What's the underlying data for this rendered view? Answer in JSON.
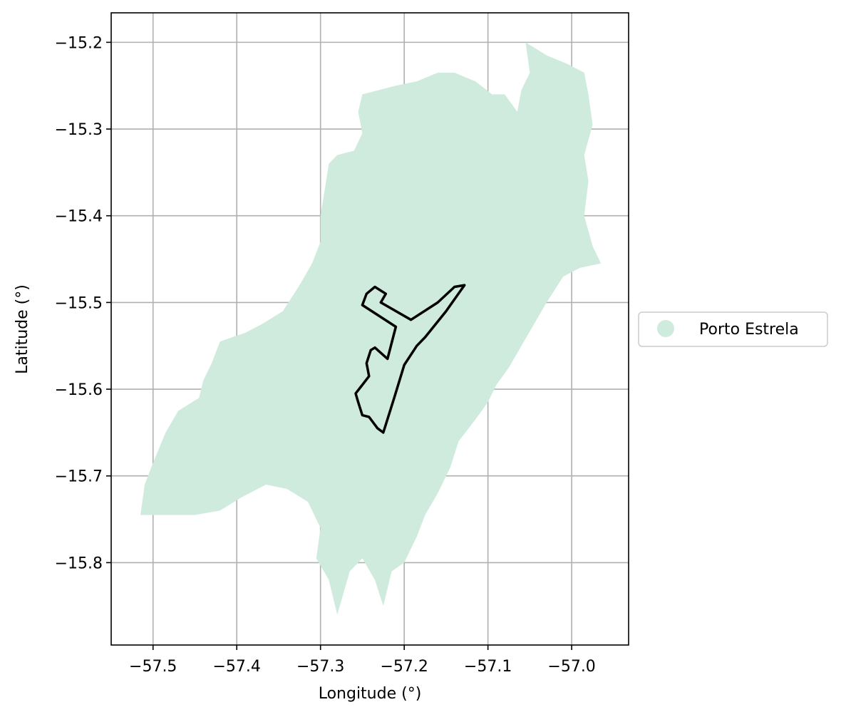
{
  "chart_data": {
    "type": "map",
    "xlabel": "Longitude (°)",
    "ylabel": "Latitude (°)",
    "xlim": [
      -57.55,
      -56.932
    ],
    "ylim": [
      -15.895,
      -15.166
    ],
    "x_ticks": [
      -57.5,
      -57.4,
      -57.3,
      -57.2,
      -57.1,
      -57.0
    ],
    "x_tick_labels": [
      "−57.5",
      "−57.4",
      "−57.3",
      "−57.2",
      "−57.1",
      "−57.0"
    ],
    "y_ticks": [
      -15.2,
      -15.3,
      -15.4,
      -15.5,
      -15.6,
      -15.7,
      -15.8
    ],
    "y_tick_labels": [
      "−15.2",
      "−15.3",
      "−15.4",
      "−15.5",
      "−15.6",
      "−15.7",
      "−15.8"
    ],
    "grid": true,
    "legend": {
      "placement": "right",
      "entries": [
        {
          "label": "Porto Estrela",
          "color": "#cfebdd"
        }
      ]
    },
    "region_fill_color": "#cfebdd",
    "outline_color": "#000000",
    "region": [
      [
        -57.055,
        -15.2
      ],
      [
        -57.03,
        -15.215
      ],
      [
        -57.005,
        -15.225
      ],
      [
        -56.985,
        -15.235
      ],
      [
        -56.98,
        -15.26
      ],
      [
        -56.975,
        -15.295
      ],
      [
        -56.985,
        -15.33
      ],
      [
        -56.98,
        -15.36
      ],
      [
        -56.985,
        -15.4
      ],
      [
        -56.975,
        -15.435
      ],
      [
        -56.965,
        -15.455
      ],
      [
        -56.99,
        -15.46
      ],
      [
        -57.01,
        -15.47
      ],
      [
        -57.03,
        -15.5
      ],
      [
        -57.045,
        -15.525
      ],
      [
        -57.06,
        -15.55
      ],
      [
        -57.075,
        -15.575
      ],
      [
        -57.09,
        -15.595
      ],
      [
        -57.1,
        -15.615
      ],
      [
        -57.115,
        -15.635
      ],
      [
        -57.135,
        -15.66
      ],
      [
        -57.145,
        -15.69
      ],
      [
        -57.16,
        -15.72
      ],
      [
        -57.175,
        -15.745
      ],
      [
        -57.185,
        -15.77
      ],
      [
        -57.2,
        -15.8
      ],
      [
        -57.215,
        -15.81
      ],
      [
        -57.225,
        -15.85
      ],
      [
        -57.235,
        -15.82
      ],
      [
        -57.25,
        -15.795
      ],
      [
        -57.265,
        -15.81
      ],
      [
        -57.28,
        -15.86
      ],
      [
        -57.29,
        -15.82
      ],
      [
        -57.305,
        -15.795
      ],
      [
        -57.3,
        -15.76
      ],
      [
        -57.315,
        -15.73
      ],
      [
        -57.34,
        -15.715
      ],
      [
        -57.365,
        -15.71
      ],
      [
        -57.395,
        -15.725
      ],
      [
        -57.42,
        -15.74
      ],
      [
        -57.45,
        -15.745
      ],
      [
        -57.49,
        -15.745
      ],
      [
        -57.515,
        -15.745
      ],
      [
        -57.51,
        -15.71
      ],
      [
        -57.5,
        -15.685
      ],
      [
        -57.485,
        -15.65
      ],
      [
        -57.47,
        -15.625
      ],
      [
        -57.445,
        -15.61
      ],
      [
        -57.44,
        -15.59
      ],
      [
        -57.43,
        -15.57
      ],
      [
        -57.42,
        -15.545
      ],
      [
        -57.39,
        -15.535
      ],
      [
        -57.37,
        -15.525
      ],
      [
        -57.345,
        -15.51
      ],
      [
        -57.325,
        -15.48
      ],
      [
        -57.31,
        -15.455
      ],
      [
        -57.3,
        -15.43
      ],
      [
        -57.3,
        -15.4
      ],
      [
        -57.295,
        -15.37
      ],
      [
        -57.29,
        -15.34
      ],
      [
        -57.28,
        -15.33
      ],
      [
        -57.26,
        -15.325
      ],
      [
        -57.25,
        -15.305
      ],
      [
        -57.255,
        -15.28
      ],
      [
        -57.25,
        -15.26
      ],
      [
        -57.23,
        -15.255
      ],
      [
        -57.21,
        -15.25
      ],
      [
        -57.185,
        -15.245
      ],
      [
        -57.16,
        -15.235
      ],
      [
        -57.14,
        -15.235
      ],
      [
        -57.115,
        -15.245
      ],
      [
        -57.095,
        -15.26
      ],
      [
        -57.08,
        -15.26
      ],
      [
        -57.065,
        -15.28
      ],
      [
        -57.06,
        -15.255
      ],
      [
        -57.05,
        -15.235
      ],
      [
        -57.055,
        -15.2
      ]
    ],
    "outline": [
      [
        -57.235,
        -15.482
      ],
      [
        -57.222,
        -15.49
      ],
      [
        -57.228,
        -15.5
      ],
      [
        -57.192,
        -15.52
      ],
      [
        -57.16,
        -15.5
      ],
      [
        -57.14,
        -15.482
      ],
      [
        -57.128,
        -15.48
      ],
      [
        -57.15,
        -15.51
      ],
      [
        -57.175,
        -15.54
      ],
      [
        -57.185,
        -15.55
      ],
      [
        -57.2,
        -15.572
      ],
      [
        -57.212,
        -15.61
      ],
      [
        -57.225,
        -15.65
      ],
      [
        -57.232,
        -15.645
      ],
      [
        -57.242,
        -15.632
      ],
      [
        -57.25,
        -15.63
      ],
      [
        -57.255,
        -15.615
      ],
      [
        -57.258,
        -15.605
      ],
      [
        -57.25,
        -15.595
      ],
      [
        -57.242,
        -15.585
      ],
      [
        -57.245,
        -15.57
      ],
      [
        -57.24,
        -15.555
      ],
      [
        -57.235,
        -15.552
      ],
      [
        -57.22,
        -15.565
      ],
      [
        -57.21,
        -15.528
      ],
      [
        -57.25,
        -15.503
      ],
      [
        -57.245,
        -15.49
      ],
      [
        -57.235,
        -15.482
      ]
    ]
  }
}
